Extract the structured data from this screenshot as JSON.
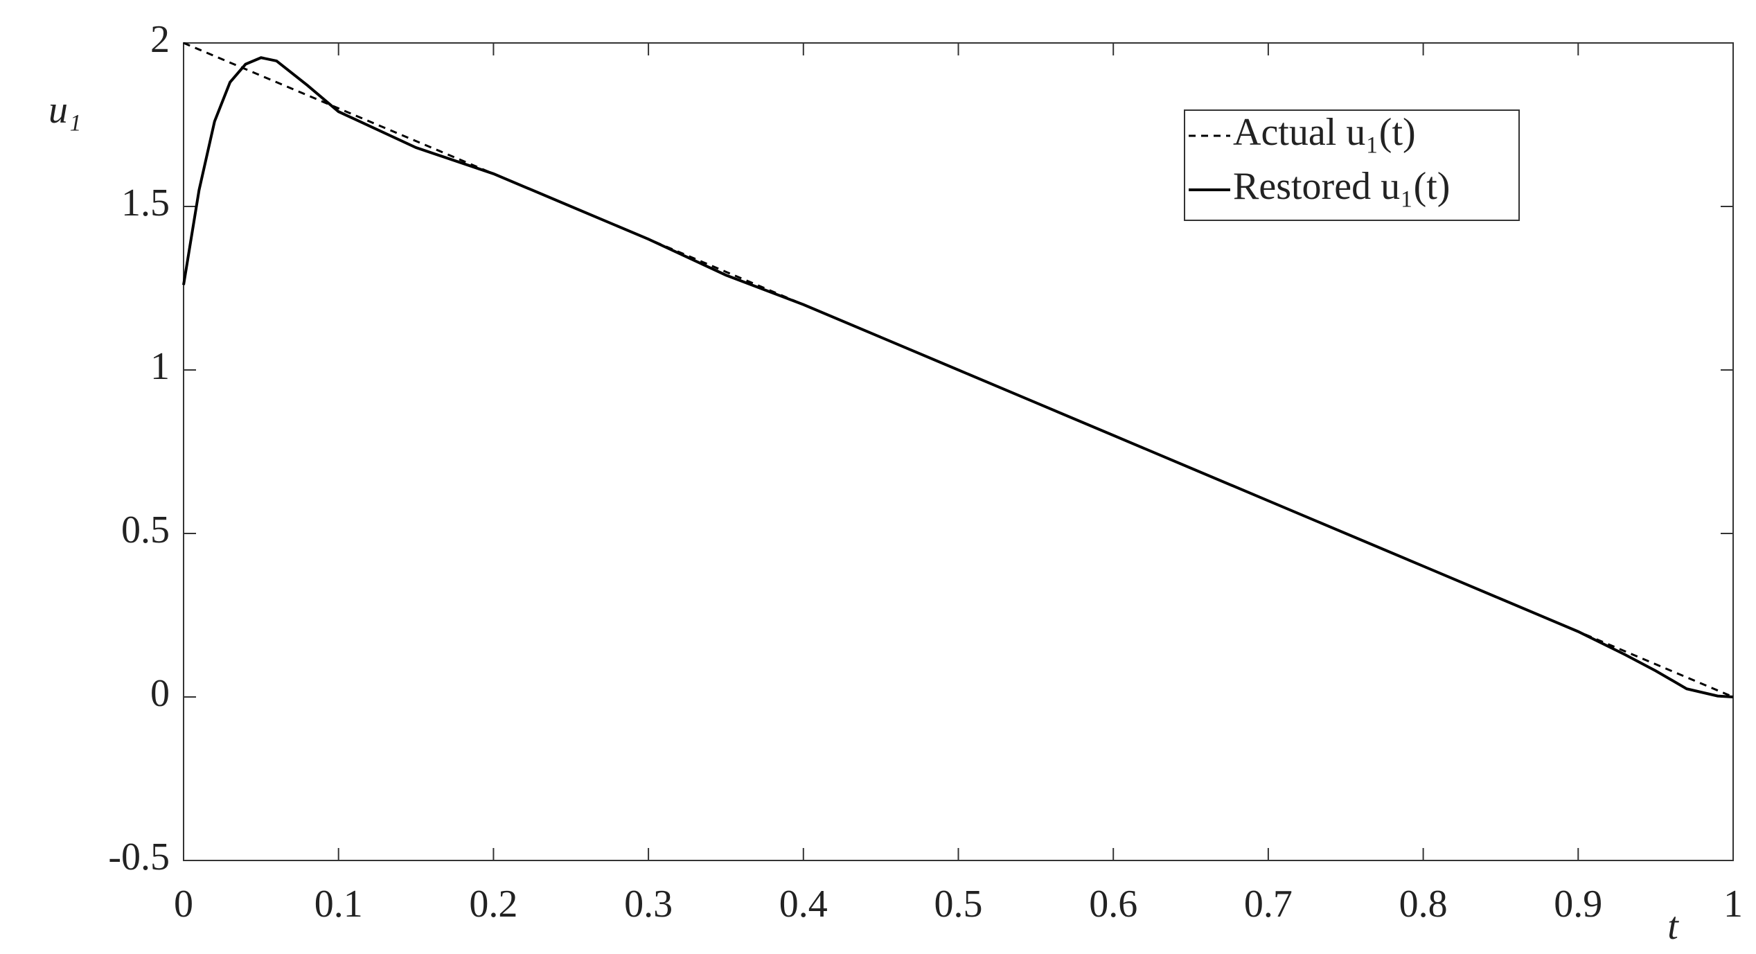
{
  "chart_data": {
    "type": "line",
    "x": [
      0,
      0.01,
      0.02,
      0.03,
      0.04,
      0.05,
      0.06,
      0.08,
      0.1,
      0.15,
      0.2,
      0.25,
      0.3,
      0.35,
      0.4,
      0.45,
      0.5,
      0.55,
      0.6,
      0.65,
      0.7,
      0.75,
      0.8,
      0.85,
      0.9,
      0.93,
      0.95,
      0.97,
      0.99,
      1
    ],
    "series": [
      {
        "name": "Actual u₁(t)",
        "color": "#000000",
        "dash": true,
        "values": [
          2,
          1.98,
          1.96,
          1.94,
          1.92,
          1.9,
          1.88,
          1.84,
          1.8,
          1.7,
          1.6,
          1.5,
          1.4,
          1.3,
          1.2,
          1.1,
          1.0,
          0.9,
          0.8,
          0.7,
          0.6,
          0.5,
          0.4,
          0.3,
          0.2,
          0.14,
          0.1,
          0.06,
          0.02,
          0
        ]
      },
      {
        "name": "Restored u₁(t)",
        "color": "#000000",
        "dash": false,
        "values": [
          1.26,
          1.55,
          1.76,
          1.88,
          1.935,
          1.955,
          1.945,
          1.87,
          1.79,
          1.68,
          1.6,
          1.5,
          1.4,
          1.29,
          1.2,
          1.1,
          1.0,
          0.9,
          0.8,
          0.7,
          0.6,
          0.5,
          0.4,
          0.3,
          0.2,
          0.13,
          0.08,
          0.025,
          0.003,
          0
        ]
      }
    ],
    "xlabel": "t",
    "ylabel": "u₁",
    "xlim": [
      0,
      1
    ],
    "xticks": [
      0,
      0.1,
      0.2,
      0.3,
      0.4,
      0.5,
      0.6,
      0.7,
      0.8,
      0.9,
      1
    ],
    "ylim": [
      -0.5,
      2
    ],
    "yticks": [
      -0.5,
      0,
      0.5,
      1,
      1.5,
      2
    ],
    "legend": "upper-right"
  }
}
